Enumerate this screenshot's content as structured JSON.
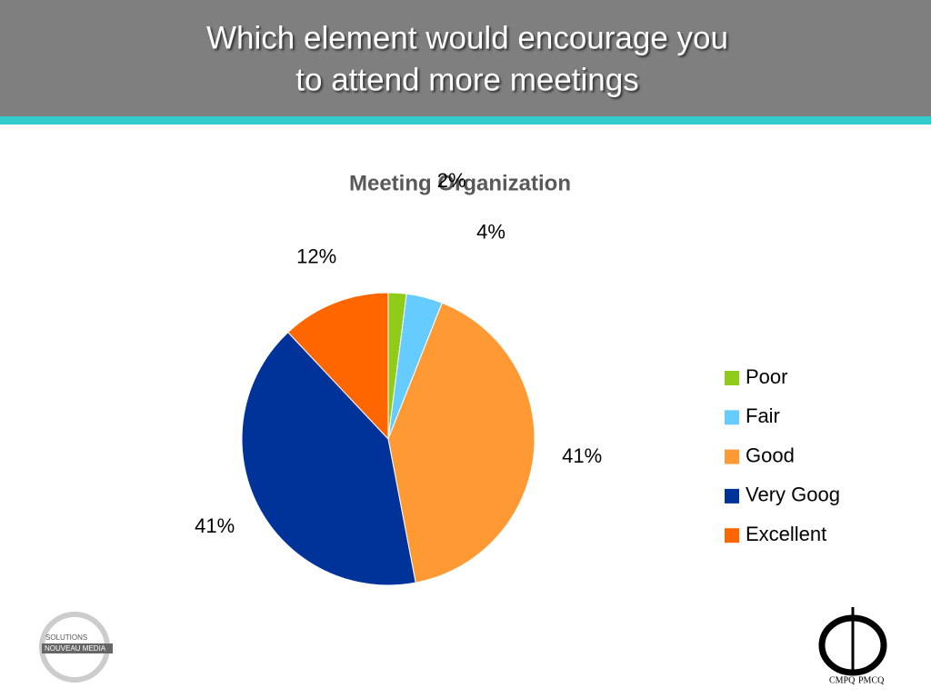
{
  "header": {
    "title_lines": [
      "Which element would encourage you",
      "to attend more meetings"
    ]
  },
  "chart_data": {
    "type": "pie",
    "title": "Meeting Organization",
    "categories": [
      "Poor",
      "Fair",
      "Good",
      "Very Goog",
      "Excellent"
    ],
    "values": [
      2,
      4,
      41,
      41,
      12
    ],
    "value_labels": [
      "2%",
      "4%",
      "41%",
      "41%",
      "12%"
    ],
    "colors": [
      "#8fcc1a",
      "#66ccff",
      "#ff9933",
      "#003399",
      "#ff6600"
    ],
    "legend": "right"
  },
  "logos": {
    "left": [
      "SOLUTIONS",
      "NOUVEAU MEDIA"
    ],
    "right": [
      "CMPQ",
      "PMCQ"
    ]
  }
}
